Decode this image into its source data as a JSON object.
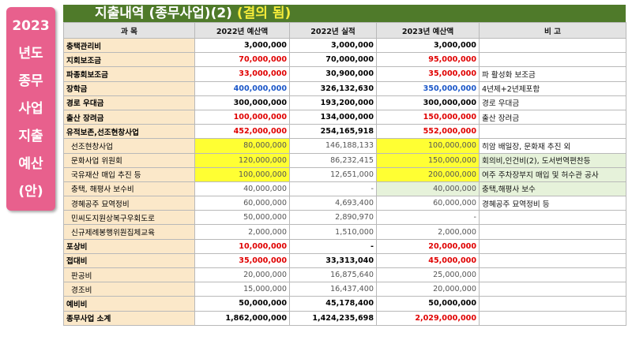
{
  "side_label": [
    "2023",
    "년도",
    "종무",
    "사업",
    "지출",
    "예산",
    "(안)"
  ],
  "title": {
    "main": "지출내역 (종무사업)(2)",
    "highlight": "(결의 됨)"
  },
  "headers": [
    "과 목",
    "2022년 예산액",
    "2022년 실적",
    "2023년 예산액",
    "비 고"
  ],
  "rows": [
    {
      "cells": [
        "충택관리비",
        "3,000,000",
        "3,000,000",
        "3,000,000",
        ""
      ],
      "kind": "main",
      "colors": [
        "",
        "",
        "",
        "",
        ""
      ],
      "bg": [
        "",
        "",
        "",
        "",
        ""
      ]
    },
    {
      "cells": [
        "지회보조금",
        "70,000,000",
        "70,000,000",
        "95,000,000",
        ""
      ],
      "kind": "main",
      "colors": [
        "",
        "red",
        "",
        "red",
        ""
      ],
      "bg": [
        "",
        "",
        "",
        "",
        ""
      ]
    },
    {
      "cells": [
        "파종회보조금",
        "33,000,000",
        "30,900,000",
        "35,000,000",
        "파 활성화 보조금"
      ],
      "kind": "main",
      "colors": [
        "",
        "red",
        "",
        "red",
        ""
      ],
      "bg": [
        "",
        "",
        "",
        "",
        ""
      ]
    },
    {
      "cells": [
        "장학금",
        "400,000,000",
        "326,132,630",
        "350,000,000",
        "4년제+2년제포함"
      ],
      "kind": "main",
      "colors": [
        "",
        "blue",
        "",
        "blue",
        ""
      ],
      "bg": [
        "",
        "",
        "",
        "",
        ""
      ]
    },
    {
      "cells": [
        "경로 우대금",
        "300,000,000",
        "193,200,000",
        "300,000,000",
        "경로 우대금"
      ],
      "kind": "main",
      "colors": [
        "",
        "",
        "",
        "",
        ""
      ],
      "bg": [
        "",
        "",
        "",
        "",
        ""
      ]
    },
    {
      "cells": [
        "출산 장려금",
        "100,000,000",
        "134,000,000",
        "150,000,000",
        "출산 장려금"
      ],
      "kind": "main",
      "colors": [
        "",
        "red",
        "",
        "red",
        ""
      ],
      "bg": [
        "",
        "",
        "",
        "",
        ""
      ]
    },
    {
      "cells": [
        "유적보존,선조현창사업",
        "452,000,000",
        "254,165,918",
        "552,000,000",
        ""
      ],
      "kind": "main",
      "colors": [
        "",
        "red",
        "",
        "red",
        ""
      ],
      "bg": [
        "",
        "",
        "",
        "",
        ""
      ]
    },
    {
      "cells": [
        "선조현창사업",
        "80,000,000",
        "146,188,133",
        "100,000,000",
        "히암 배일장, 문화재 추진 외"
      ],
      "kind": "sub",
      "colors": [
        "",
        "",
        "",
        "",
        ""
      ],
      "bg": [
        "",
        "yellow",
        "",
        "yellow",
        ""
      ]
    },
    {
      "cells": [
        "문화사업 위원회",
        "120,000,000",
        "86,232,415",
        "150,000,000",
        "회의비,인건비(2), 도서번역편찬등"
      ],
      "kind": "sub",
      "colors": [
        "",
        "",
        "",
        "",
        ""
      ],
      "bg": [
        "",
        "yellow",
        "",
        "yellow",
        "greenbg"
      ]
    },
    {
      "cells": [
        "국유재산 매입 추진 등",
        "100,000,000",
        "12,651,000",
        "200,000,000",
        "여주 주차장부지 매입 및 허수관 공사"
      ],
      "kind": "sub",
      "colors": [
        "",
        "",
        "",
        "",
        ""
      ],
      "bg": [
        "",
        "yellow",
        "",
        "yellow",
        "greenbg"
      ]
    },
    {
      "cells": [
        "충택, 해평사 보수비",
        "40,000,000",
        "-",
        "40,000,000",
        "충택,해평사 보수"
      ],
      "kind": "sub",
      "colors": [
        "",
        "",
        "",
        "",
        ""
      ],
      "bg": [
        "",
        "",
        "",
        "greenbg",
        "greenbg"
      ]
    },
    {
      "cells": [
        "경혜공주 묘역정비",
        "60,000,000",
        "4,693,400",
        "60,000,000",
        "경혜공주 묘역정비 등"
      ],
      "kind": "sub",
      "colors": [
        "",
        "",
        "",
        "",
        ""
      ],
      "bg": [
        "",
        "",
        "",
        "",
        ""
      ]
    },
    {
      "cells": [
        "민씨도지원상복구우회도로",
        "50,000,000",
        "2,890,970",
        "-",
        ""
      ],
      "kind": "sub",
      "colors": [
        "",
        "",
        "",
        "",
        ""
      ],
      "bg": [
        "",
        "",
        "",
        "",
        ""
      ]
    },
    {
      "cells": [
        "신규제례봉행위원집체교육",
        "2,000,000",
        "1,510,000",
        "2,000,000",
        ""
      ],
      "kind": "sub",
      "colors": [
        "",
        "",
        "",
        "",
        ""
      ],
      "bg": [
        "",
        "",
        "",
        "",
        ""
      ]
    },
    {
      "cells": [
        "포상비",
        "10,000,000",
        "-",
        "20,000,000",
        ""
      ],
      "kind": "main",
      "colors": [
        "",
        "red",
        "",
        "red",
        ""
      ],
      "bg": [
        "",
        "",
        "",
        "",
        ""
      ]
    },
    {
      "cells": [
        "접대비",
        "35,000,000",
        "33,313,040",
        "45,000,000",
        ""
      ],
      "kind": "main",
      "colors": [
        "",
        "red",
        "",
        "red",
        ""
      ],
      "bg": [
        "",
        "",
        "",
        "",
        ""
      ]
    },
    {
      "cells": [
        "판공비",
        "20,000,000",
        "16,875,640",
        "25,000,000",
        ""
      ],
      "kind": "sub",
      "colors": [
        "",
        "",
        "",
        "",
        ""
      ],
      "bg": [
        "",
        "",
        "",
        "",
        ""
      ]
    },
    {
      "cells": [
        "경조비",
        "15,000,000",
        "16,437,400",
        "20,000,000",
        ""
      ],
      "kind": "sub",
      "colors": [
        "",
        "",
        "",
        "",
        ""
      ],
      "bg": [
        "",
        "",
        "",
        "",
        ""
      ]
    },
    {
      "cells": [
        "예비비",
        "50,000,000",
        "45,178,400",
        "50,000,000",
        ""
      ],
      "kind": "main",
      "colors": [
        "",
        "",
        "",
        "",
        ""
      ],
      "bg": [
        "",
        "",
        "",
        "",
        ""
      ]
    },
    {
      "cells": [
        "종무사업 소계",
        "1,862,000,000",
        "1,424,235,698",
        "2,029,000,000",
        ""
      ],
      "kind": "main",
      "colors": [
        "",
        "",
        "",
        "red",
        ""
      ],
      "bg": [
        "",
        "",
        "",
        "",
        ""
      ]
    }
  ],
  "colors": {
    "title_bg": "#4f7a2a",
    "title_highlight": "#f6ec3a",
    "side_bg": "#e8608d",
    "label_bg": "#fbe8c9",
    "highlight_yellow": "#ffff33",
    "red": "#e00000",
    "blue": "#1a56c8"
  }
}
